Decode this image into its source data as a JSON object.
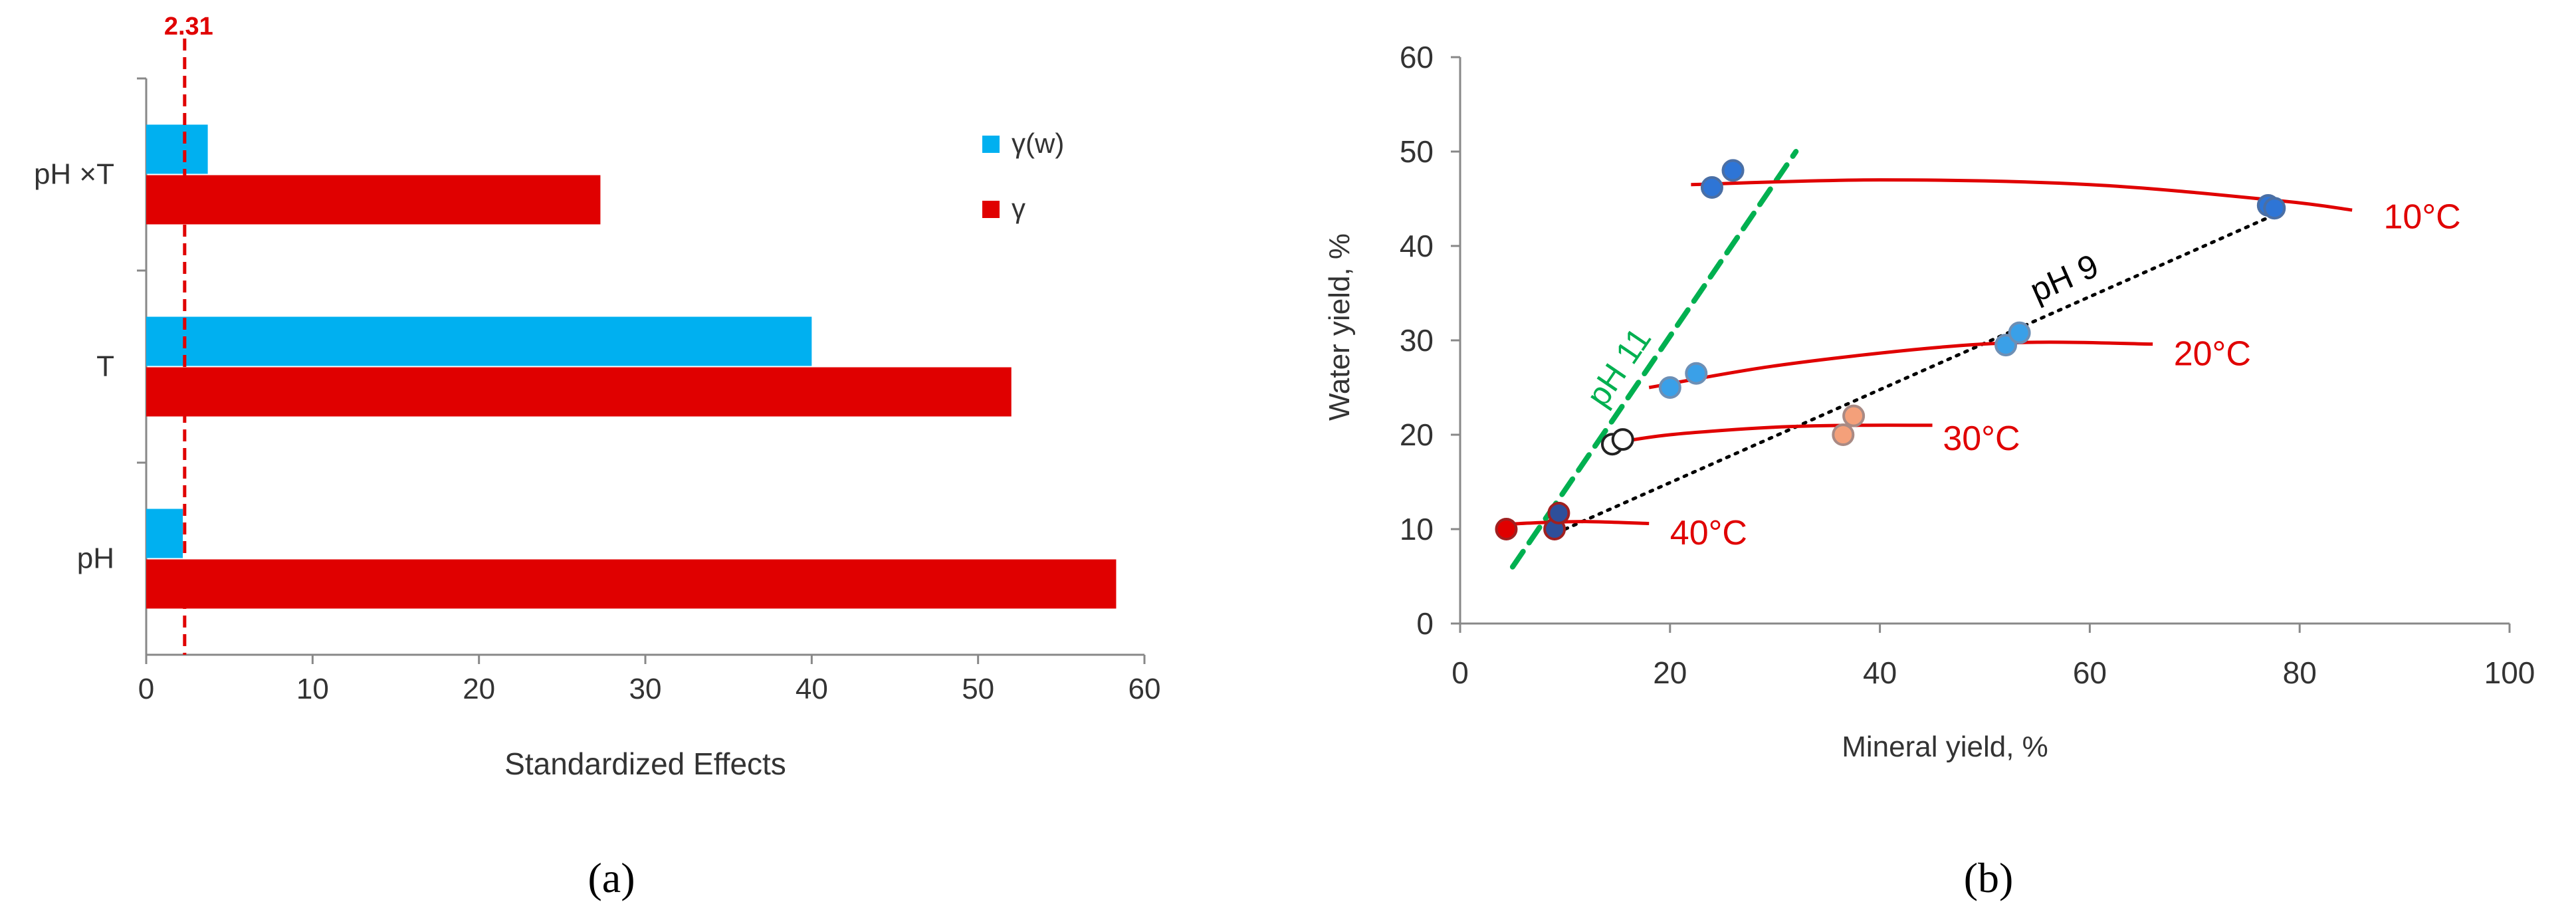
{
  "chart_data": [
    {
      "panel": "a",
      "type": "bar",
      "orientation": "horizontal",
      "categories": [
        "pH",
        "T",
        "pH ×T"
      ],
      "series": [
        {
          "name": "γ(w)",
          "color": "#00b0f0",
          "values": [
            2.2,
            40.0,
            3.7
          ]
        },
        {
          "name": "γ",
          "color": "#e00000",
          "values": [
            58.3,
            52.0,
            27.3
          ]
        }
      ],
      "xlabel": "Standardized Effects",
      "xlim": [
        0,
        60
      ],
      "xticks": [
        "0",
        "10",
        "20",
        "30",
        "40",
        "50",
        "60"
      ],
      "reference_line": {
        "value": 2.31,
        "label": "2.31",
        "color": "#e00000",
        "style": "dashed"
      },
      "legend_position": "top-right",
      "caption": "(a)"
    },
    {
      "panel": "b",
      "type": "scatter",
      "xlabel": "Mineral yield, %",
      "ylabel": "Water yield, %",
      "xlim": [
        0,
        100
      ],
      "ylim": [
        0,
        60
      ],
      "xticks": [
        "0",
        "20",
        "40",
        "60",
        "80",
        "100"
      ],
      "yticks": [
        "0",
        "10",
        "20",
        "30",
        "40",
        "50",
        "60"
      ],
      "points": [
        {
          "x": 24.0,
          "y": 46.2,
          "group": "10°C"
        },
        {
          "x": 26.0,
          "y": 48.0,
          "group": "10°C"
        },
        {
          "x": 77.0,
          "y": 44.3,
          "group": "10°C"
        },
        {
          "x": 77.6,
          "y": 44.0,
          "group": "10°C"
        },
        {
          "x": 20.0,
          "y": 25.0,
          "group": "20°C"
        },
        {
          "x": 22.5,
          "y": 26.5,
          "group": "20°C"
        },
        {
          "x": 52.0,
          "y": 29.5,
          "group": "20°C"
        },
        {
          "x": 53.3,
          "y": 30.8,
          "group": "20°C"
        },
        {
          "x": 36.5,
          "y": 20.0,
          "group": "30°C"
        },
        {
          "x": 37.5,
          "y": 22.0,
          "group": "30°C"
        },
        {
          "x": 14.5,
          "y": 19.0,
          "group": "30°C"
        },
        {
          "x": 15.5,
          "y": 19.5,
          "group": "30°C"
        },
        {
          "x": 4.4,
          "y": 10.0,
          "group": "40°C"
        },
        {
          "x": 9.0,
          "y": 10.0,
          "group": "40°C"
        },
        {
          "x": 9.4,
          "y": 11.7,
          "group": "40°C"
        }
      ],
      "curves": [
        {
          "label": "10°C",
          "color": "#e00000",
          "x": [
            22,
            40,
            60,
            78,
            85
          ],
          "y": [
            46.5,
            47.0,
            46.5,
            44.8,
            43.8
          ]
        },
        {
          "label": "20°C",
          "color": "#e00000",
          "x": [
            18,
            30,
            45,
            55,
            66
          ],
          "y": [
            25.0,
            27.3,
            29.2,
            29.8,
            29.6
          ]
        },
        {
          "label": "30°C",
          "color": "#e00000",
          "x": [
            14,
            20,
            30,
            38,
            45
          ],
          "y": [
            19.0,
            20.0,
            20.8,
            21.0,
            21.0
          ]
        },
        {
          "label": "40°C",
          "color": "#e00000",
          "x": [
            4,
            8,
            12,
            18
          ],
          "y": [
            10.5,
            10.7,
            10.8,
            10.6
          ]
        }
      ],
      "trend_lines": [
        {
          "label": "pH 11",
          "color": "#00b050",
          "style": "dashed",
          "x": [
            5,
            32
          ],
          "y": [
            6,
            50
          ]
        },
        {
          "label": "pH 9",
          "color": "#000000",
          "style": "dotted",
          "x": [
            10,
            77
          ],
          "y": [
            10,
            43
          ]
        }
      ],
      "caption": "(b)"
    }
  ]
}
